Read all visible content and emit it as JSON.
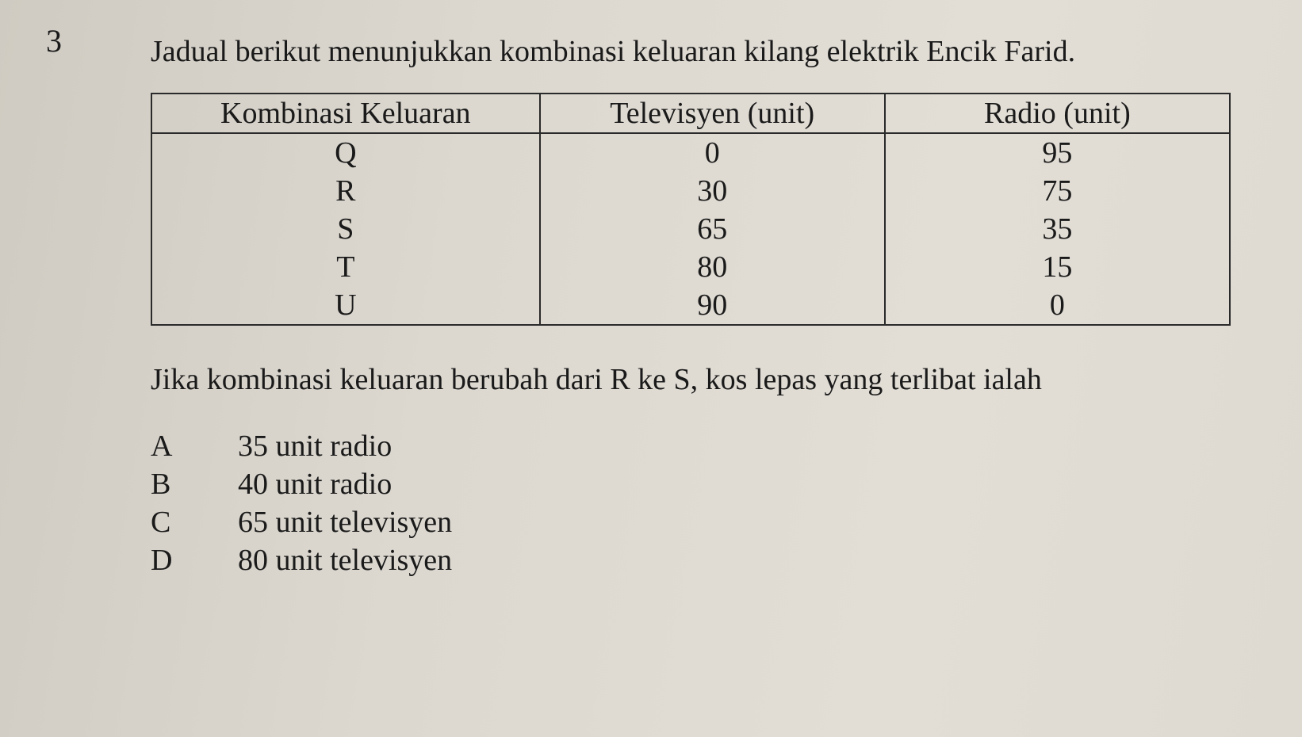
{
  "question_number": "3",
  "lead_text": "Jadual berikut menunjukkan kombinasi keluaran kilang elektrik Encik Farid.",
  "table": {
    "columns": [
      "Kombinasi Keluaran",
      "Televisyen (unit)",
      "Radio (unit)"
    ],
    "column_widths_pct": [
      36,
      32,
      32
    ],
    "rows": [
      [
        "Q",
        "0",
        "95"
      ],
      [
        "R",
        "30",
        "75"
      ],
      [
        "S",
        "65",
        "35"
      ],
      [
        "T",
        "80",
        "15"
      ],
      [
        "U",
        "90",
        "0"
      ]
    ],
    "border_color": "#2a2a2a",
    "font_size_pt": 28
  },
  "follow_text": "Jika kombinasi keluaran berubah dari R ke S, kos lepas yang terlibat ialah",
  "options": [
    {
      "letter": "A",
      "text": "35 unit radio"
    },
    {
      "letter": "B",
      "text": "40 unit radio"
    },
    {
      "letter": "C",
      "text": "65 unit televisyen"
    },
    {
      "letter": "D",
      "text": "80 unit televisyen"
    }
  ],
  "style": {
    "background_color": "#dcd8d0",
    "text_color": "#1a1a1a",
    "font_family": "Times New Roman",
    "body_font_size_pt": 28
  }
}
